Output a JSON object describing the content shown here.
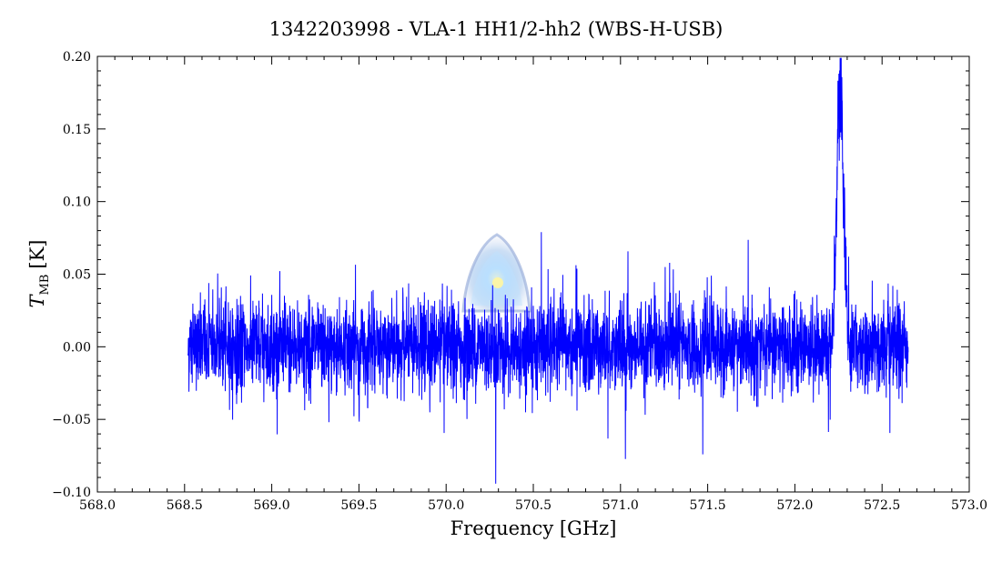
{
  "chart_data": {
    "type": "line",
    "title": "1342203998 - VLA-1 HH1/2-hh2 (WBS-H-USB)",
    "xlabel": "Frequency [GHz]",
    "ylabel_main": "T",
    "ylabel_sub": "MB",
    "ylabel_unit": "[K]",
    "xlim": [
      568.0,
      573.0
    ],
    "ylim": [
      -0.1,
      0.2
    ],
    "x_ticks": [
      568.0,
      568.5,
      569.0,
      569.5,
      570.0,
      570.5,
      571.0,
      571.5,
      572.0,
      572.5,
      573.0
    ],
    "x_tick_labels": [
      "568.0",
      "568.5",
      "569.0",
      "569.5",
      "570.0",
      "570.5",
      "571.0",
      "571.5",
      "572.0",
      "572.5",
      "573.0"
    ],
    "y_ticks": [
      -0.1,
      -0.05,
      0.0,
      0.05,
      0.1,
      0.15,
      0.2
    ],
    "y_tick_labels": [
      "−0.10",
      "−0.05",
      "0.00",
      "0.05",
      "0.10",
      "0.15",
      "0.20"
    ],
    "grid": false,
    "legend": "none",
    "series": [
      {
        "color": "#0000ff",
        "x_range": [
          568.52,
          572.65
        ],
        "noise_rms": 0.015,
        "baseline": 0.0,
        "features": [
          {
            "kind": "emission-line",
            "center": 572.26,
            "peak": 0.185,
            "width": 0.02
          }
        ]
      }
    ],
    "watermark_icon": "herschel-logo"
  }
}
